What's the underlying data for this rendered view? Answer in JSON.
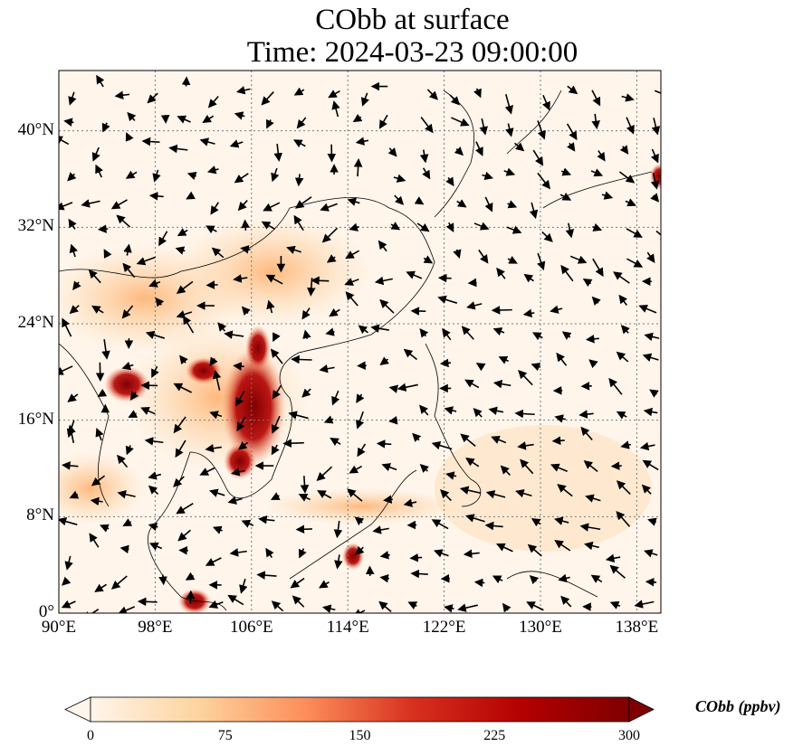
{
  "title": {
    "line1": "CObb at surface",
    "line2": "Time: 2024-03-23 09:00:00"
  },
  "map": {
    "lon_range": [
      90,
      140
    ],
    "lat_range": [
      0,
      45
    ],
    "lat_ticks": [
      {
        "value": 0,
        "label": "0°"
      },
      {
        "value": 8,
        "label": "8°N"
      },
      {
        "value": 16,
        "label": "16°N"
      },
      {
        "value": 24,
        "label": "24°N"
      },
      {
        "value": 32,
        "label": "32°N"
      },
      {
        "value": 40,
        "label": "40°N"
      }
    ],
    "lon_ticks": [
      {
        "value": 90,
        "label": "90°E"
      },
      {
        "value": 98,
        "label": "98°E"
      },
      {
        "value": 106,
        "label": "106°E"
      },
      {
        "value": 114,
        "label": "114°E"
      },
      {
        "value": 122,
        "label": "122°E"
      },
      {
        "value": 130,
        "label": "130°E"
      },
      {
        "value": 138,
        "label": "138°E"
      }
    ]
  },
  "colorbar": {
    "label": "CObb (ppbv)",
    "min": 0,
    "max": 300,
    "ticks": [
      "0",
      "75",
      "150",
      "225",
      "300"
    ],
    "colors": [
      "#fff5eb",
      "#fdd49e",
      "#fc8d59",
      "#d7301f",
      "#b30000",
      "#7f0000"
    ]
  }
}
